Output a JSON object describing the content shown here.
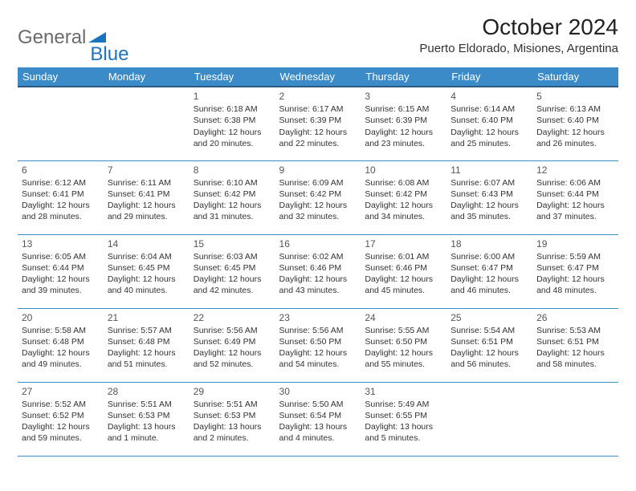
{
  "logo": {
    "text_general": "General",
    "text_blue": "Blue"
  },
  "header": {
    "month_title": "October 2024",
    "location": "Puerto Eldorado, Misiones, Argentina"
  },
  "colors": {
    "header_bg": "#3b8bc9",
    "header_border": "#2d5a82",
    "logo_grey": "#6b6b6b",
    "logo_blue": "#1e73be",
    "text": "#333333",
    "bg": "#ffffff"
  },
  "calendar": {
    "day_headers": [
      "Sunday",
      "Monday",
      "Tuesday",
      "Wednesday",
      "Thursday",
      "Friday",
      "Saturday"
    ],
    "weeks": [
      [
        null,
        null,
        {
          "n": "1",
          "sr": "Sunrise: 6:18 AM",
          "ss": "Sunset: 6:38 PM",
          "d1": "Daylight: 12 hours",
          "d2": "and 20 minutes."
        },
        {
          "n": "2",
          "sr": "Sunrise: 6:17 AM",
          "ss": "Sunset: 6:39 PM",
          "d1": "Daylight: 12 hours",
          "d2": "and 22 minutes."
        },
        {
          "n": "3",
          "sr": "Sunrise: 6:15 AM",
          "ss": "Sunset: 6:39 PM",
          "d1": "Daylight: 12 hours",
          "d2": "and 23 minutes."
        },
        {
          "n": "4",
          "sr": "Sunrise: 6:14 AM",
          "ss": "Sunset: 6:40 PM",
          "d1": "Daylight: 12 hours",
          "d2": "and 25 minutes."
        },
        {
          "n": "5",
          "sr": "Sunrise: 6:13 AM",
          "ss": "Sunset: 6:40 PM",
          "d1": "Daylight: 12 hours",
          "d2": "and 26 minutes."
        }
      ],
      [
        {
          "n": "6",
          "sr": "Sunrise: 6:12 AM",
          "ss": "Sunset: 6:41 PM",
          "d1": "Daylight: 12 hours",
          "d2": "and 28 minutes."
        },
        {
          "n": "7",
          "sr": "Sunrise: 6:11 AM",
          "ss": "Sunset: 6:41 PM",
          "d1": "Daylight: 12 hours",
          "d2": "and 29 minutes."
        },
        {
          "n": "8",
          "sr": "Sunrise: 6:10 AM",
          "ss": "Sunset: 6:42 PM",
          "d1": "Daylight: 12 hours",
          "d2": "and 31 minutes."
        },
        {
          "n": "9",
          "sr": "Sunrise: 6:09 AM",
          "ss": "Sunset: 6:42 PM",
          "d1": "Daylight: 12 hours",
          "d2": "and 32 minutes."
        },
        {
          "n": "10",
          "sr": "Sunrise: 6:08 AM",
          "ss": "Sunset: 6:42 PM",
          "d1": "Daylight: 12 hours",
          "d2": "and 34 minutes."
        },
        {
          "n": "11",
          "sr": "Sunrise: 6:07 AM",
          "ss": "Sunset: 6:43 PM",
          "d1": "Daylight: 12 hours",
          "d2": "and 35 minutes."
        },
        {
          "n": "12",
          "sr": "Sunrise: 6:06 AM",
          "ss": "Sunset: 6:44 PM",
          "d1": "Daylight: 12 hours",
          "d2": "and 37 minutes."
        }
      ],
      [
        {
          "n": "13",
          "sr": "Sunrise: 6:05 AM",
          "ss": "Sunset: 6:44 PM",
          "d1": "Daylight: 12 hours",
          "d2": "and 39 minutes."
        },
        {
          "n": "14",
          "sr": "Sunrise: 6:04 AM",
          "ss": "Sunset: 6:45 PM",
          "d1": "Daylight: 12 hours",
          "d2": "and 40 minutes."
        },
        {
          "n": "15",
          "sr": "Sunrise: 6:03 AM",
          "ss": "Sunset: 6:45 PM",
          "d1": "Daylight: 12 hours",
          "d2": "and 42 minutes."
        },
        {
          "n": "16",
          "sr": "Sunrise: 6:02 AM",
          "ss": "Sunset: 6:46 PM",
          "d1": "Daylight: 12 hours",
          "d2": "and 43 minutes."
        },
        {
          "n": "17",
          "sr": "Sunrise: 6:01 AM",
          "ss": "Sunset: 6:46 PM",
          "d1": "Daylight: 12 hours",
          "d2": "and 45 minutes."
        },
        {
          "n": "18",
          "sr": "Sunrise: 6:00 AM",
          "ss": "Sunset: 6:47 PM",
          "d1": "Daylight: 12 hours",
          "d2": "and 46 minutes."
        },
        {
          "n": "19",
          "sr": "Sunrise: 5:59 AM",
          "ss": "Sunset: 6:47 PM",
          "d1": "Daylight: 12 hours",
          "d2": "and 48 minutes."
        }
      ],
      [
        {
          "n": "20",
          "sr": "Sunrise: 5:58 AM",
          "ss": "Sunset: 6:48 PM",
          "d1": "Daylight: 12 hours",
          "d2": "and 49 minutes."
        },
        {
          "n": "21",
          "sr": "Sunrise: 5:57 AM",
          "ss": "Sunset: 6:48 PM",
          "d1": "Daylight: 12 hours",
          "d2": "and 51 minutes."
        },
        {
          "n": "22",
          "sr": "Sunrise: 5:56 AM",
          "ss": "Sunset: 6:49 PM",
          "d1": "Daylight: 12 hours",
          "d2": "and 52 minutes."
        },
        {
          "n": "23",
          "sr": "Sunrise: 5:56 AM",
          "ss": "Sunset: 6:50 PM",
          "d1": "Daylight: 12 hours",
          "d2": "and 54 minutes."
        },
        {
          "n": "24",
          "sr": "Sunrise: 5:55 AM",
          "ss": "Sunset: 6:50 PM",
          "d1": "Daylight: 12 hours",
          "d2": "and 55 minutes."
        },
        {
          "n": "25",
          "sr": "Sunrise: 5:54 AM",
          "ss": "Sunset: 6:51 PM",
          "d1": "Daylight: 12 hours",
          "d2": "and 56 minutes."
        },
        {
          "n": "26",
          "sr": "Sunrise: 5:53 AM",
          "ss": "Sunset: 6:51 PM",
          "d1": "Daylight: 12 hours",
          "d2": "and 58 minutes."
        }
      ],
      [
        {
          "n": "27",
          "sr": "Sunrise: 5:52 AM",
          "ss": "Sunset: 6:52 PM",
          "d1": "Daylight: 12 hours",
          "d2": "and 59 minutes."
        },
        {
          "n": "28",
          "sr": "Sunrise: 5:51 AM",
          "ss": "Sunset: 6:53 PM",
          "d1": "Daylight: 13 hours",
          "d2": "and 1 minute."
        },
        {
          "n": "29",
          "sr": "Sunrise: 5:51 AM",
          "ss": "Sunset: 6:53 PM",
          "d1": "Daylight: 13 hours",
          "d2": "and 2 minutes."
        },
        {
          "n": "30",
          "sr": "Sunrise: 5:50 AM",
          "ss": "Sunset: 6:54 PM",
          "d1": "Daylight: 13 hours",
          "d2": "and 4 minutes."
        },
        {
          "n": "31",
          "sr": "Sunrise: 5:49 AM",
          "ss": "Sunset: 6:55 PM",
          "d1": "Daylight: 13 hours",
          "d2": "and 5 minutes."
        },
        null,
        null
      ]
    ]
  }
}
